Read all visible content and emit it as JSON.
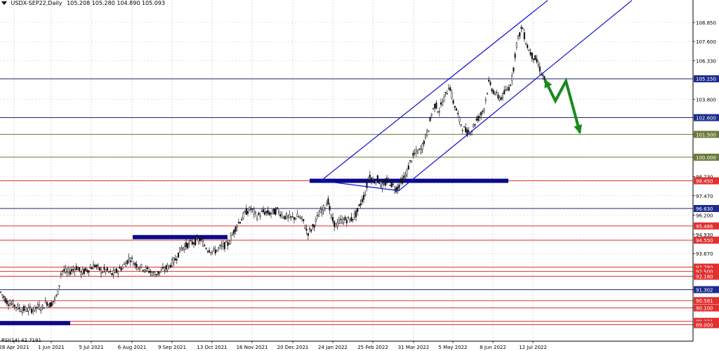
{
  "header": {
    "symbol": "USDX-SEP22,Daily",
    "ohlc": "105.208 105.280 104.890 105.093"
  },
  "indicator": {
    "label": "RSI(14) 42.7191"
  },
  "colors": {
    "grid": "#c8c8c8",
    "bull": "#111111",
    "bear": "#111111",
    "channel": "#1010d0",
    "zone": "#0a0a8a",
    "arrow": "#1a8a1a",
    "navy": "#23236e",
    "red": "#e03030",
    "olive": "#6a7a3a",
    "price_label_bg_dark": "#1c2c8c"
  },
  "chart_data": {
    "type": "candlestick",
    "title": "USDX-SEP22,Daily",
    "ylim": [
      88.9,
      110.0
    ],
    "x_ticks": [
      "28 Apr 2021",
      "1 Jun 2021",
      "5 Jul 2021",
      "6 Aug 2021",
      "9 Sep 2021",
      "13 Oct 2021",
      "16 Nov 2021",
      "20 Dec 2021",
      "24 Jan 2022",
      "25 Feb 2022",
      "31 Mar 2022",
      "5 May 2022",
      "8 Jun 2022",
      "12 Jul 2022"
    ],
    "y_ticks": [
      108.85,
      107.6,
      106.33,
      103.8,
      101.5,
      100.0,
      98.73,
      97.47,
      96.2,
      94.93,
      93.67,
      91.3,
      90.1,
      89.0
    ],
    "y_tick_labels": [
      "108.850",
      "107.600",
      "106.330",
      "103.800",
      "101.500",
      "100.000",
      "98.730",
      "97.470",
      "96.200",
      "94.930",
      "93.670",
      "91.302",
      "90.100",
      "89.000"
    ],
    "levels": [
      {
        "label": "105.150",
        "value": 105.15,
        "style": "navy"
      },
      {
        "label": "102.600",
        "value": 102.6,
        "style": "navy"
      },
      {
        "label": "101.500",
        "value": 101.5,
        "style": "olive"
      },
      {
        "label": "100.000",
        "value": 100.0,
        "style": "olive"
      },
      {
        "label": "98.450",
        "value": 98.45,
        "style": "red"
      },
      {
        "label": "96.630",
        "value": 96.63,
        "style": "navy"
      },
      {
        "label": "95.486",
        "value": 95.486,
        "style": "red"
      },
      {
        "label": "94.550",
        "value": 94.55,
        "style": "red"
      },
      {
        "label": "92.780",
        "value": 92.78,
        "style": "red"
      },
      {
        "label": "92.500",
        "value": 92.5,
        "style": "red"
      },
      {
        "label": "92.180",
        "value": 92.18,
        "style": "red"
      },
      {
        "label": "91.302",
        "value": 91.302,
        "style": "navy"
      },
      {
        "label": "90.581",
        "value": 90.581,
        "style": "red"
      },
      {
        "label": "90.100",
        "value": 90.1,
        "style": "red"
      },
      {
        "label": "89.221",
        "value": 89.221,
        "style": "red"
      },
      {
        "label": "89.000",
        "value": 89.0,
        "style": "red"
      }
    ],
    "price_path": [
      [
        0,
        91.2
      ],
      [
        10,
        90.5
      ],
      [
        20,
        90.3
      ],
      [
        30,
        90.0
      ],
      [
        40,
        90.0
      ],
      [
        48,
        90.0
      ],
      [
        55,
        90.2
      ],
      [
        60,
        90.1
      ],
      [
        66,
        90.5
      ],
      [
        72,
        90.3
      ],
      [
        80,
        90.8
      ],
      [
        84,
        91.4
      ],
      [
        86,
        92.3
      ],
      [
        90,
        92.6
      ],
      [
        95,
        92.4
      ],
      [
        100,
        92.5
      ],
      [
        110,
        92.8
      ],
      [
        115,
        92.4
      ],
      [
        125,
        92.6
      ],
      [
        135,
        92.9
      ],
      [
        145,
        92.5
      ],
      [
        150,
        92.6
      ],
      [
        160,
        92.3
      ],
      [
        175,
        92.8
      ],
      [
        185,
        93.4
      ],
      [
        192,
        93.0
      ],
      [
        200,
        92.8
      ],
      [
        210,
        92.6
      ],
      [
        220,
        92.3
      ],
      [
        230,
        92.5
      ],
      [
        240,
        92.8
      ],
      [
        250,
        93.3
      ],
      [
        258,
        94.0
      ],
      [
        265,
        94.2
      ],
      [
        275,
        94.4
      ],
      [
        285,
        94.6
      ],
      [
        295,
        94.0
      ],
      [
        305,
        93.8
      ],
      [
        315,
        94.1
      ],
      [
        325,
        94.3
      ],
      [
        330,
        94.8
      ],
      [
        338,
        95.6
      ],
      [
        345,
        96.0
      ],
      [
        350,
        96.4
      ],
      [
        358,
        96.6
      ],
      [
        366,
        96.1
      ],
      [
        375,
        96.4
      ],
      [
        385,
        96.3
      ],
      [
        395,
        96.5
      ],
      [
        405,
        96.1
      ],
      [
        415,
        96.0
      ],
      [
        425,
        96.1
      ],
      [
        432,
        95.8
      ],
      [
        438,
        95.0
      ],
      [
        444,
        95.3
      ],
      [
        450,
        95.8
      ],
      [
        455,
        96.3
      ],
      [
        462,
        96.7
      ],
      [
        467,
        97.2
      ],
      [
        472,
        96.0
      ],
      [
        478,
        95.5
      ],
      [
        485,
        95.8
      ],
      [
        492,
        95.9
      ],
      [
        500,
        95.9
      ],
      [
        508,
        96.3
      ],
      [
        514,
        97.0
      ],
      [
        520,
        97.6
      ],
      [
        526,
        98.9
      ],
      [
        532,
        98.4
      ],
      [
        538,
        98.6
      ],
      [
        545,
        98.0
      ],
      [
        552,
        98.5
      ],
      [
        558,
        98.2
      ],
      [
        565,
        97.9
      ],
      [
        570,
        98.3
      ],
      [
        578,
        98.8
      ],
      [
        585,
        99.8
      ],
      [
        592,
        100.3
      ],
      [
        600,
        100.5
      ],
      [
        605,
        101.2
      ],
      [
        610,
        101.8
      ],
      [
        615,
        102.9
      ],
      [
        620,
        103.5
      ],
      [
        625,
        103.0
      ],
      [
        630,
        103.6
      ],
      [
        636,
        104.2
      ],
      [
        640,
        104.8
      ],
      [
        645,
        103.7
      ],
      [
        650,
        103.1
      ],
      [
        655,
        102.3
      ],
      [
        660,
        101.9
      ],
      [
        666,
        101.6
      ],
      [
        672,
        101.8
      ],
      [
        678,
        102.4
      ],
      [
        685,
        102.8
      ],
      [
        690,
        103.3
      ],
      [
        696,
        104.9
      ],
      [
        702,
        104.4
      ],
      [
        708,
        104.0
      ],
      [
        714,
        103.9
      ],
      [
        720,
        104.3
      ],
      [
        725,
        104.6
      ],
      [
        730,
        105.3
      ],
      [
        735,
        107.3
      ],
      [
        740,
        108.1
      ],
      [
        744,
        108.6
      ],
      [
        748,
        107.7
      ],
      [
        752,
        107.2
      ],
      [
        757,
        106.7
      ],
      [
        762,
        106.5
      ],
      [
        768,
        105.9
      ],
      [
        772,
        105.4
      ],
      [
        776,
        105.1
      ]
    ],
    "channel": {
      "upper": [
        [
          457,
          98.45
        ],
        [
          780,
          110.3
        ]
      ],
      "lower": [
        [
          568,
          97.8
        ],
        [
          900,
          110.3
        ]
      ]
    },
    "zones": [
      {
        "x1": 441,
        "x2": 724,
        "value": 98.45
      },
      {
        "x1": 189,
        "x2": 324,
        "value": 94.75
      },
      {
        "x1": 0,
        "x2": 100,
        "value": 89.1
      }
    ],
    "forecast_arrow": [
      [
        776,
        105.1
      ],
      [
        791,
        103.7
      ],
      [
        806,
        105.0
      ],
      [
        826,
        101.6
      ]
    ]
  }
}
